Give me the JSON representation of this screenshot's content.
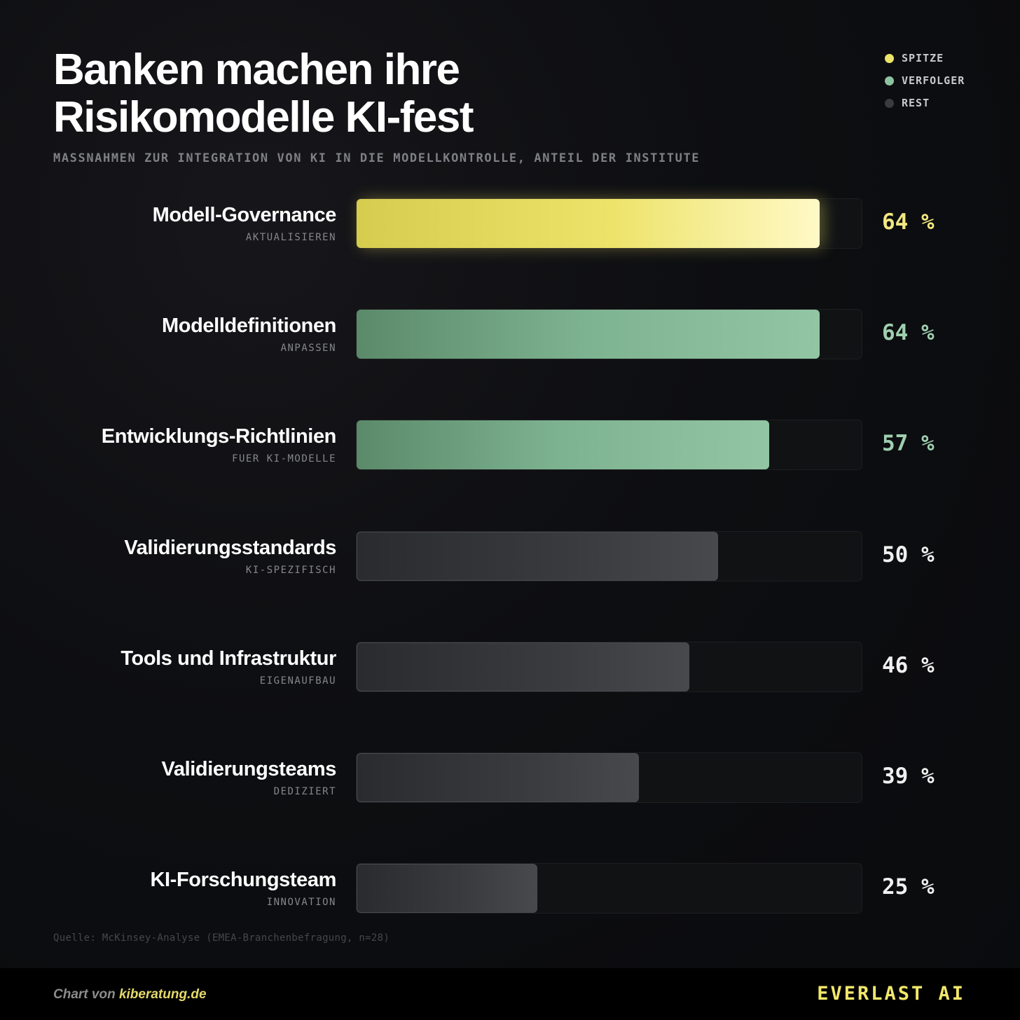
{
  "title_line1": "Banken machen ihre",
  "title_line2": "Risikomodelle KI-fest",
  "subtitle": "MASSNAHMEN ZUR INTEGRATION VON KI IN DIE MODELLKONTROLLE, ANTEIL DER INSTITUTE",
  "legend": [
    {
      "label": "SPITZE",
      "color": "#ede36a"
    },
    {
      "label": "VERFOLGER",
      "color": "#8cc3a0"
    },
    {
      "label": "REST",
      "color": "#3a3b3e"
    }
  ],
  "colors": {
    "spitze_text": "#f2e781",
    "verfolger_text": "#9fcfb0",
    "rest_text": "#f0f0f0"
  },
  "chart_data": {
    "type": "bar",
    "orientation": "horizontal",
    "xlim": [
      0,
      70
    ],
    "unit": "%",
    "rows": [
      {
        "label": "Modell-Governance",
        "sublabel": "AKTUALISIEREN",
        "value": 64,
        "display": "64 %",
        "group": "spitze"
      },
      {
        "label": "Modelldefinitionen",
        "sublabel": "ANPASSEN",
        "value": 64,
        "display": "64 %",
        "group": "verfolger"
      },
      {
        "label": "Entwicklungs-Richtlinien",
        "sublabel": "FUER KI-MODELLE",
        "value": 57,
        "display": "57 %",
        "group": "verfolger"
      },
      {
        "label": "Validierungsstandards",
        "sublabel": "KI-SPEZIFISCH",
        "value": 50,
        "display": "50 %",
        "group": "rest"
      },
      {
        "label": "Tools und Infrastruktur",
        "sublabel": "EIGENAUFBAU",
        "value": 46,
        "display": "46 %",
        "group": "rest"
      },
      {
        "label": "Validierungsteams",
        "sublabel": "DEDIZIERT",
        "value": 39,
        "display": "39 %",
        "group": "rest"
      },
      {
        "label": "KI-Forschungsteam",
        "sublabel": "INNOVATION",
        "value": 25,
        "display": "25 %",
        "group": "rest"
      }
    ]
  },
  "source": "Quelle: McKinsey-Analyse (EMEA-Branchenbefragung, n=28)",
  "footer": {
    "credit_prefix": "Chart von ",
    "credit_site": "kiberatung.de",
    "brand": "EVERLAST AI"
  }
}
